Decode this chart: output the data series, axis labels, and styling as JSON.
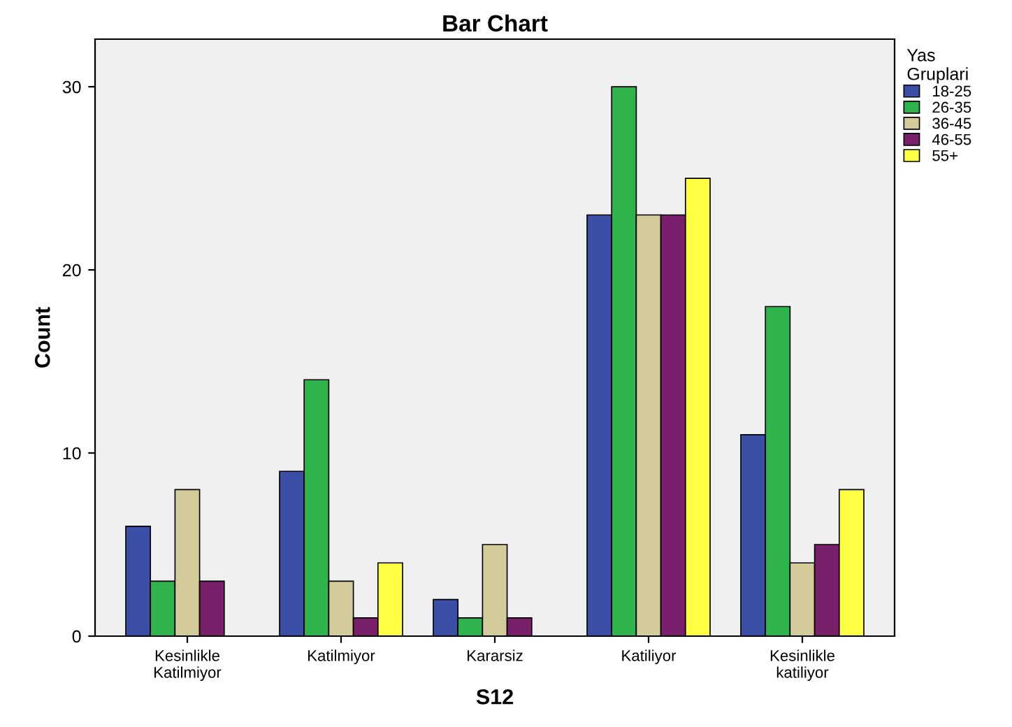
{
  "chart_data": {
    "type": "bar",
    "title": "Bar Chart",
    "xlabel": "S12",
    "ylabel": "Count",
    "legend_title": "Yas\nGruplari",
    "legend": "right",
    "categories": [
      "Kesinlikle\nKatilmiyor",
      "Katilmiyor",
      "Kararsiz",
      "Katiliyor",
      "Kesinlikle\nkatiliyor"
    ],
    "series": [
      {
        "name": "18-25",
        "color": "#3c4fa6",
        "values": [
          6,
          9,
          2,
          23,
          11
        ]
      },
      {
        "name": "26-35",
        "color": "#2fb34c",
        "values": [
          3,
          14,
          1,
          30,
          18
        ]
      },
      {
        "name": "36-45",
        "color": "#d3cc9a",
        "values": [
          8,
          3,
          5,
          23,
          4
        ]
      },
      {
        "name": "46-55",
        "color": "#7a1f6c",
        "values": [
          3,
          1,
          1,
          23,
          5
        ]
      },
      {
        "name": "55+",
        "color": "#ffff44",
        "values": [
          null,
          4,
          null,
          25,
          8
        ]
      }
    ],
    "ylim": [
      0,
      32.6
    ],
    "yticks": [
      0,
      10,
      20,
      30
    ],
    "grid": false
  }
}
